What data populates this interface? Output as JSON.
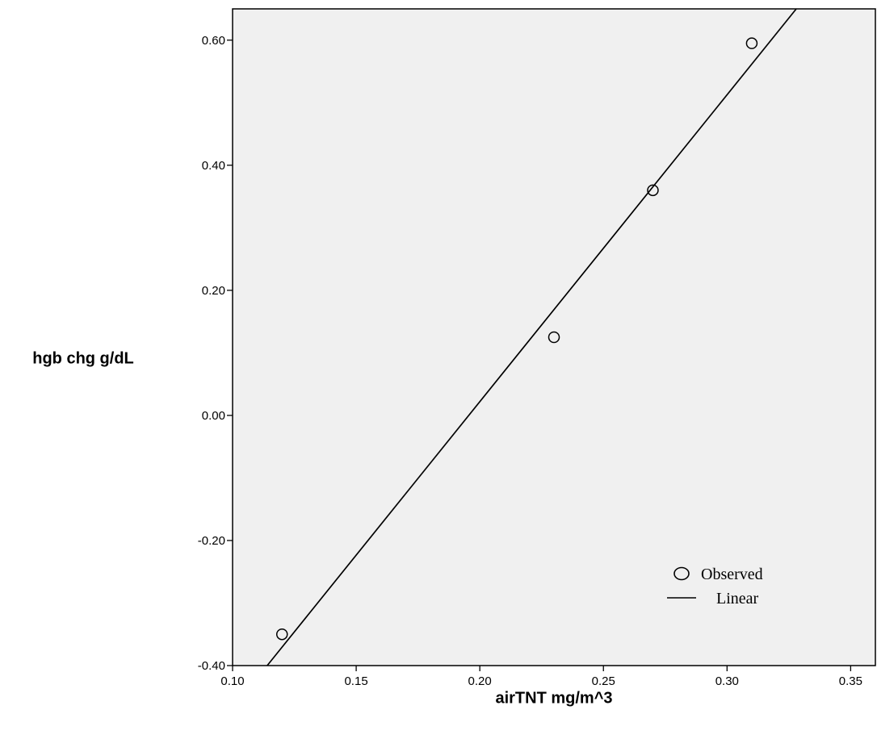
{
  "chart_data": {
    "type": "scatter",
    "xlabel": "airTNT mg/m^3",
    "ylabel": "hgb chg g/dL",
    "xlim": [
      0.1,
      0.36
    ],
    "ylim": [
      -0.4,
      0.65
    ],
    "x_ticks": [
      "0.10",
      "0.15",
      "0.20",
      "0.25",
      "0.30",
      "0.35"
    ],
    "x_tick_values": [
      0.1,
      0.15,
      0.2,
      0.25,
      0.3,
      0.35
    ],
    "y_ticks": [
      "-0.40",
      "-0.20",
      "0.00",
      "0.20",
      "0.40",
      "0.60"
    ],
    "y_tick_values": [
      -0.4,
      -0.2,
      0.0,
      0.2,
      0.4,
      0.6
    ],
    "grid": false,
    "legend_position": "bottom-right",
    "background_color": "#f0f0f0",
    "series": [
      {
        "name": "Observed",
        "kind": "points",
        "x": [
          0.12,
          0.23,
          0.27,
          0.31
        ],
        "y": [
          -0.35,
          0.125,
          0.36,
          0.595
        ]
      },
      {
        "name": "Linear",
        "kind": "line",
        "x": [
          0.114,
          0.328
        ],
        "y": [
          -0.4,
          0.65
        ]
      }
    ]
  }
}
